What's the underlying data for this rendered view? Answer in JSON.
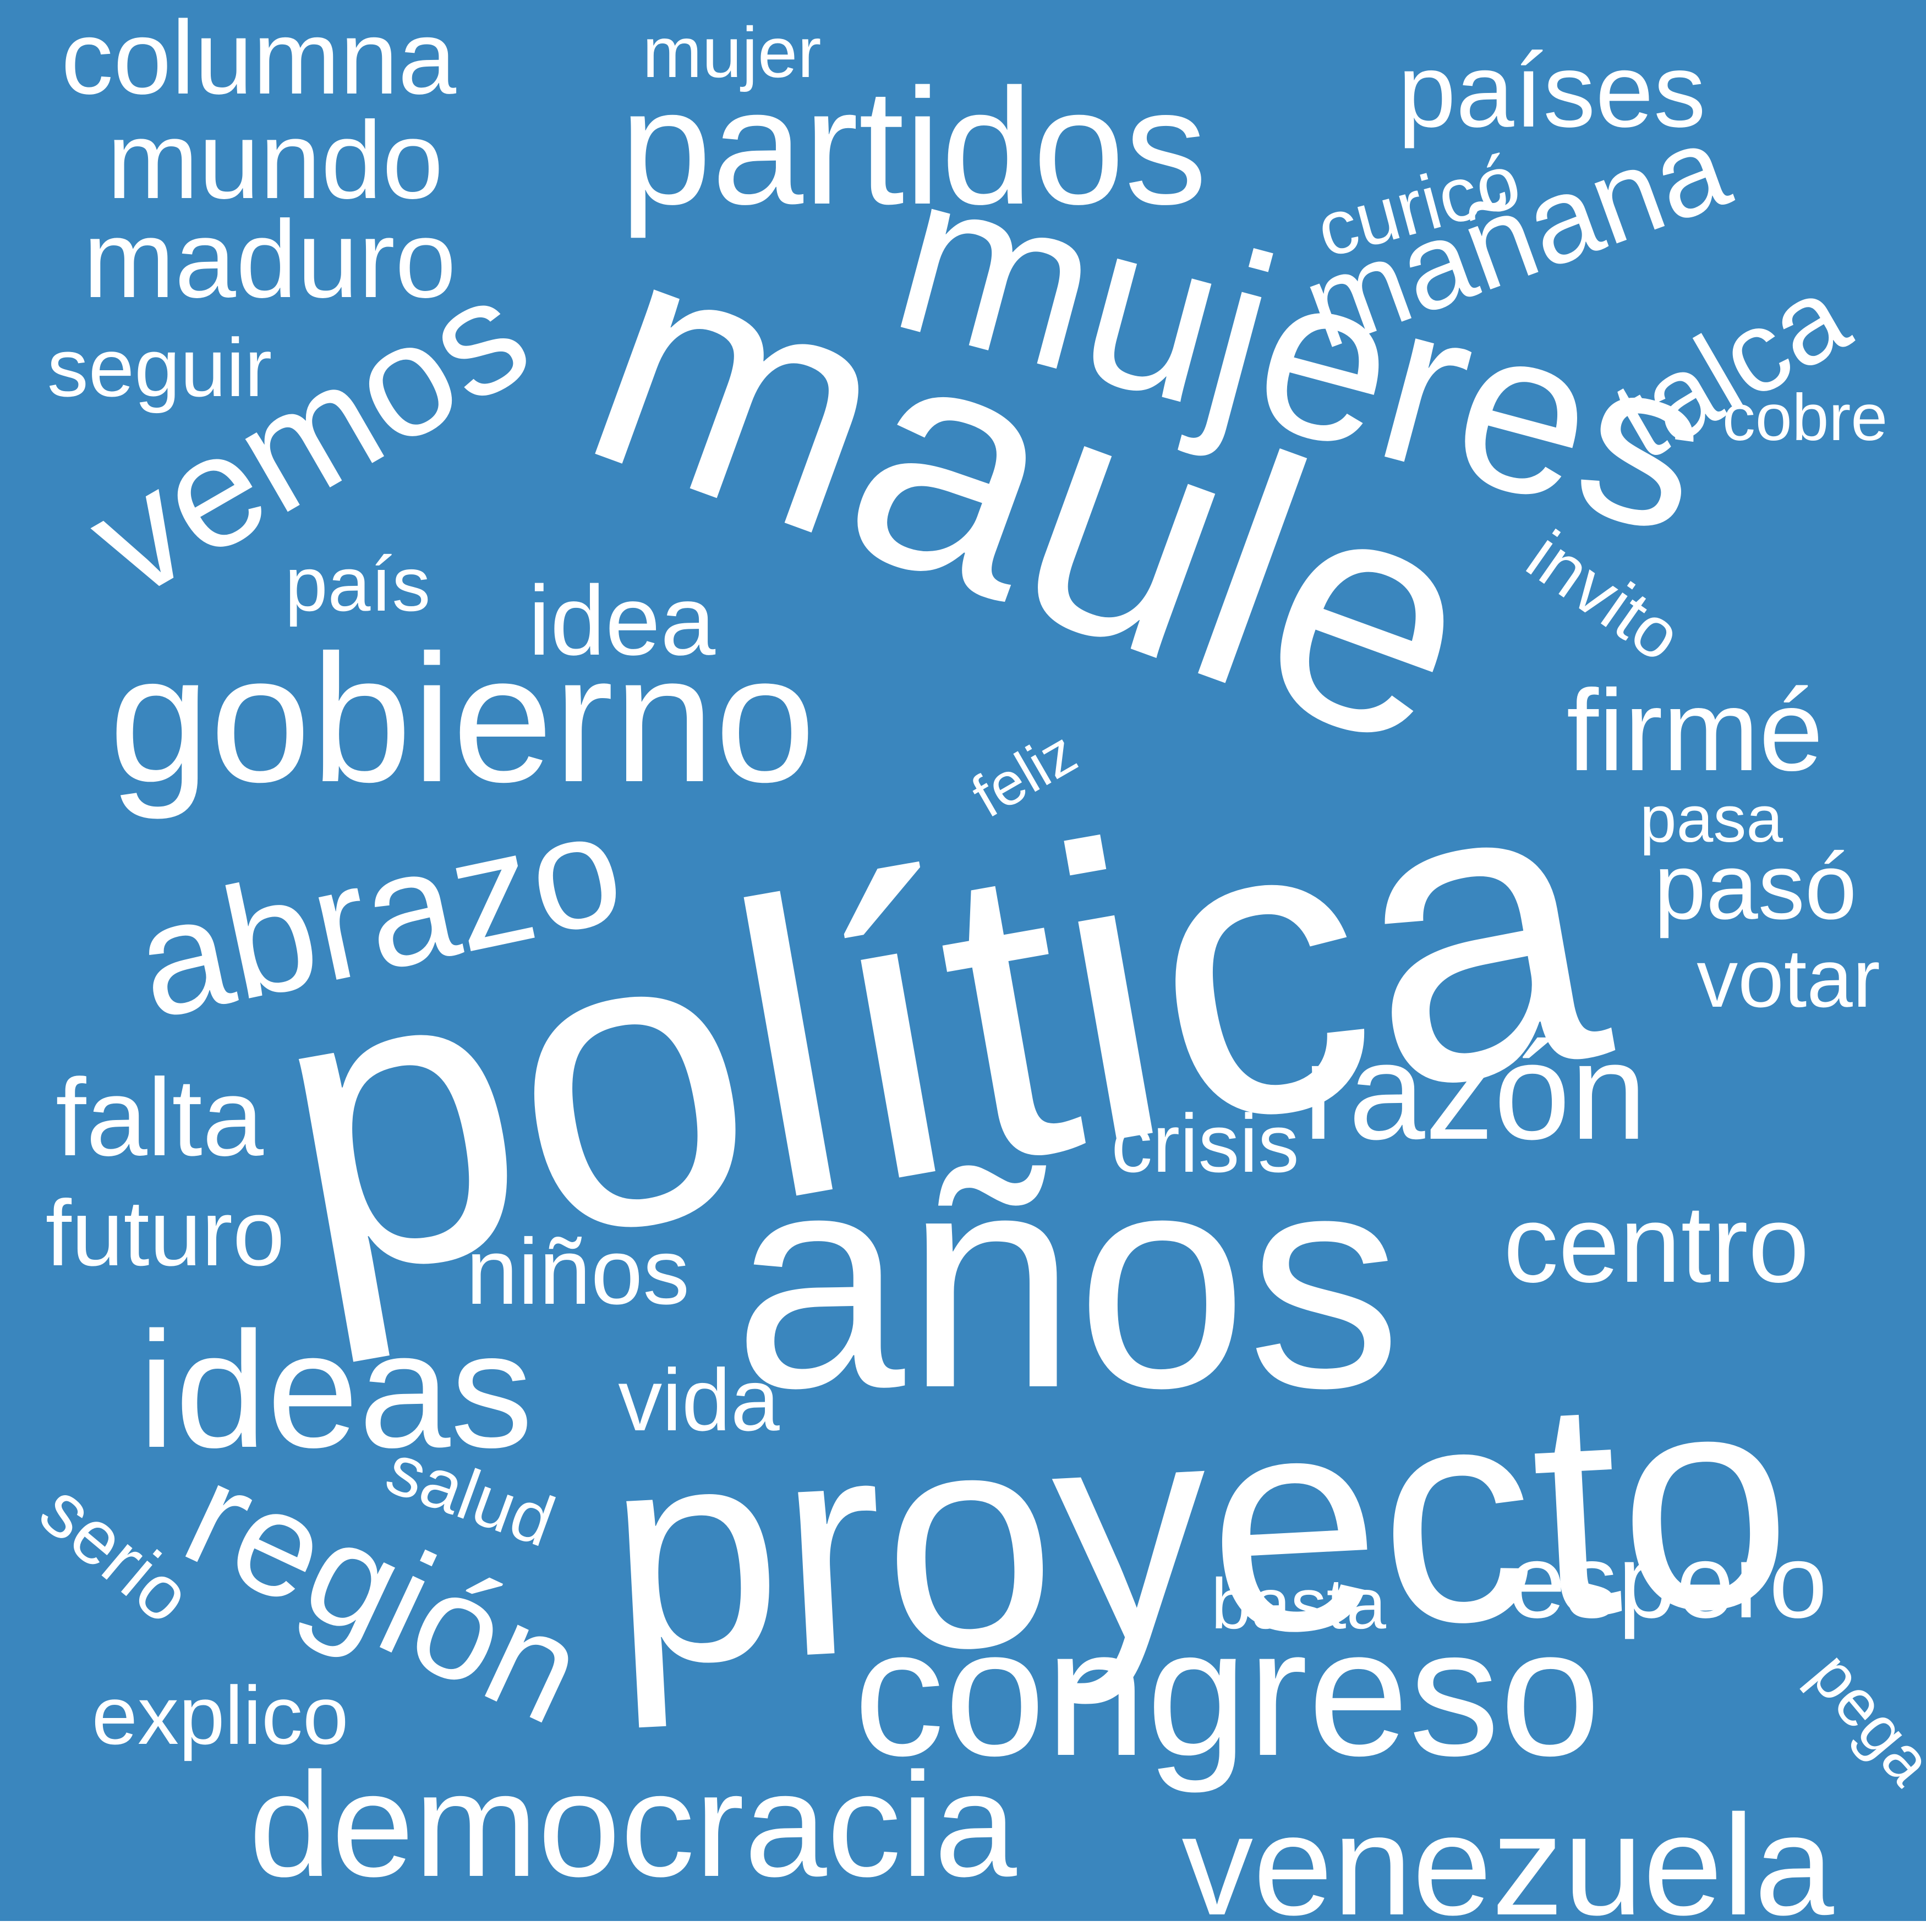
{
  "colors": {
    "background": "#3a86be",
    "text": "#ffffff",
    "page": "#ffffff"
  },
  "words": [
    {
      "id": "politica",
      "text": "política",
      "rotation": "tilted"
    },
    {
      "id": "anos",
      "text": "años",
      "rotation": "horizontal"
    },
    {
      "id": "proyecto",
      "text": "proyecto",
      "rotation": "horizontal"
    },
    {
      "id": "maule",
      "text": "maule",
      "rotation": "tilted"
    },
    {
      "id": "mujeres",
      "text": "mujeres",
      "rotation": "tilted"
    },
    {
      "id": "gobierno",
      "text": "gobierno",
      "rotation": "horizontal"
    },
    {
      "id": "partidos",
      "text": "partidos",
      "rotation": "horizontal"
    },
    {
      "id": "congreso",
      "text": "congreso",
      "rotation": "horizontal"
    },
    {
      "id": "democracia",
      "text": "democracia",
      "rotation": "horizontal"
    },
    {
      "id": "venezuela",
      "text": "venezuela",
      "rotation": "horizontal"
    },
    {
      "id": "abrazo",
      "text": "abrazo",
      "rotation": "tilted"
    },
    {
      "id": "ideas",
      "text": "ideas",
      "rotation": "horizontal"
    },
    {
      "id": "vemos",
      "text": "vemos",
      "rotation": "tilted"
    },
    {
      "id": "region",
      "text": "región",
      "rotation": "tilted"
    },
    {
      "id": "razon",
      "text": "razón",
      "rotation": "horizontal"
    },
    {
      "id": "manana",
      "text": "mañana",
      "rotation": "tilted"
    },
    {
      "id": "paises",
      "text": "países",
      "rotation": "horizontal"
    },
    {
      "id": "mundo",
      "text": "mundo",
      "rotation": "horizontal"
    },
    {
      "id": "maduro",
      "text": "maduro",
      "rotation": "horizontal"
    },
    {
      "id": "columna",
      "text": "columna",
      "rotation": "horizontal"
    },
    {
      "id": "firme",
      "text": "firmé",
      "rotation": "horizontal"
    },
    {
      "id": "talca",
      "text": "talca",
      "rotation": "tilted"
    },
    {
      "id": "falta",
      "text": "falta",
      "rotation": "horizontal"
    },
    {
      "id": "centro",
      "text": "centro",
      "rotation": "horizontal"
    },
    {
      "id": "idea",
      "text": "idea",
      "rotation": "horizontal"
    },
    {
      "id": "espero",
      "text": "espero",
      "rotation": "horizontal"
    },
    {
      "id": "futuro",
      "text": "futuro",
      "rotation": "horizontal"
    },
    {
      "id": "ninos",
      "text": "niños",
      "rotation": "horizontal"
    },
    {
      "id": "paso",
      "text": "pasó",
      "rotation": "horizontal"
    },
    {
      "id": "explico",
      "text": "explico",
      "rotation": "horizontal"
    },
    {
      "id": "crisis",
      "text": "crisis",
      "rotation": "horizontal"
    },
    {
      "id": "seguir",
      "text": "seguir",
      "rotation": "horizontal"
    },
    {
      "id": "vida",
      "text": "vida",
      "rotation": "horizontal"
    },
    {
      "id": "votar",
      "text": "votar",
      "rotation": "horizontal"
    },
    {
      "id": "pais",
      "text": "país",
      "rotation": "horizontal"
    },
    {
      "id": "curico",
      "text": "curicó",
      "rotation": "tilted"
    },
    {
      "id": "mujer",
      "text": "mujer",
      "rotation": "horizontal"
    },
    {
      "id": "salud",
      "text": "salud",
      "rotation": "tilted"
    },
    {
      "id": "serio",
      "text": "serio",
      "rotation": "tilted"
    },
    {
      "id": "basta",
      "text": "basta",
      "rotation": "horizontal"
    },
    {
      "id": "cobre",
      "text": "cobre",
      "rotation": "horizontal"
    },
    {
      "id": "pasa",
      "text": "pasa",
      "rotation": "horizontal"
    },
    {
      "id": "invito",
      "text": "invito",
      "rotation": "tilted"
    },
    {
      "id": "feliz",
      "text": "feliz",
      "rotation": "tilted"
    },
    {
      "id": "pega",
      "text": "pega",
      "rotation": "tilted"
    }
  ]
}
